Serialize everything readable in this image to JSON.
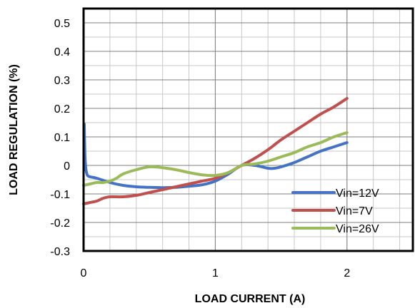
{
  "chart_data": {
    "type": "line",
    "xlabel": "LOAD CURRENT  (A)",
    "ylabel": "LOAD REGULATION  (%)",
    "xlim": [
      0,
      2.5
    ],
    "ylim": [
      -0.3,
      0.55
    ],
    "x_ticks": [
      0,
      1,
      2
    ],
    "x_tick_labels": [
      "0",
      "1",
      "2"
    ],
    "y_ticks": [
      0.5,
      0.4,
      0.3,
      0.2,
      0.1,
      0,
      -0.1,
      -0.2,
      -0.3
    ],
    "y_tick_labels": [
      "0.5",
      "0.4",
      "0.3",
      "0.2",
      "0.1",
      "0",
      "-0.1",
      "-0.2",
      "-0.3"
    ],
    "x_minor_step": 0.2,
    "y_minor_step": 0.05,
    "grid": true,
    "legend_position": "bottom-right",
    "series": [
      {
        "name": "Vin=12V",
        "color": "#4472C4",
        "x": [
          0.005,
          0.01,
          0.015,
          0.02,
          0.03,
          0.05,
          0.1,
          0.2,
          0.3,
          0.4,
          0.5,
          0.6,
          0.7,
          0.8,
          0.9,
          1.0,
          1.1,
          1.2,
          1.3,
          1.4,
          1.45,
          1.5,
          1.6,
          1.7,
          1.8,
          1.9,
          2.0
        ],
        "y": [
          0.145,
          0.04,
          0.0,
          -0.02,
          -0.035,
          -0.04,
          -0.045,
          -0.06,
          -0.07,
          -0.075,
          -0.077,
          -0.078,
          -0.077,
          -0.073,
          -0.068,
          -0.055,
          -0.03,
          0.0,
          0.0,
          -0.01,
          -0.01,
          -0.005,
          0.01,
          0.03,
          0.05,
          0.065,
          0.08
        ]
      },
      {
        "name": "Vin=7V",
        "color": "#C0504D",
        "x": [
          0.0,
          0.05,
          0.1,
          0.15,
          0.2,
          0.3,
          0.4,
          0.5,
          0.6,
          0.7,
          0.8,
          0.9,
          1.0,
          1.1,
          1.2,
          1.3,
          1.4,
          1.5,
          1.6,
          1.7,
          1.8,
          1.9,
          2.0
        ],
        "y": [
          -0.135,
          -0.13,
          -0.125,
          -0.115,
          -0.11,
          -0.11,
          -0.105,
          -0.095,
          -0.085,
          -0.075,
          -0.065,
          -0.055,
          -0.045,
          -0.025,
          0.0,
          0.025,
          0.055,
          0.09,
          0.12,
          0.15,
          0.18,
          0.205,
          0.235
        ]
      },
      {
        "name": "Vin=26V",
        "color": "#9BBB59",
        "x": [
          0.0,
          0.05,
          0.1,
          0.15,
          0.2,
          0.25,
          0.3,
          0.4,
          0.5,
          0.6,
          0.7,
          0.8,
          0.9,
          1.0,
          1.1,
          1.2,
          1.3,
          1.4,
          1.5,
          1.6,
          1.7,
          1.8,
          1.9,
          2.0
        ],
        "y": [
          -0.07,
          -0.065,
          -0.06,
          -0.06,
          -0.055,
          -0.045,
          -0.03,
          -0.015,
          -0.005,
          -0.008,
          -0.015,
          -0.025,
          -0.033,
          -0.035,
          -0.025,
          0.0,
          0.005,
          0.015,
          0.03,
          0.045,
          0.065,
          0.08,
          0.1,
          0.115
        ]
      }
    ]
  }
}
